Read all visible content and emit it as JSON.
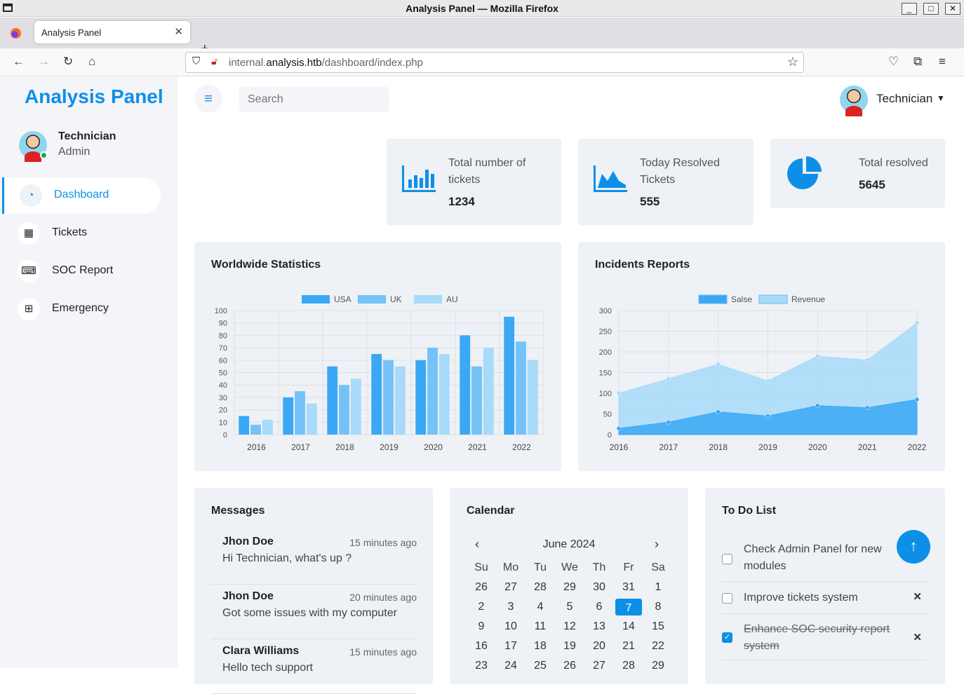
{
  "window": {
    "title": "Analysis Panel — Mozilla Firefox",
    "min": "_",
    "max": "□",
    "close": "✕"
  },
  "browser": {
    "tab_title": "Analysis Panel",
    "tab_close": "✕",
    "newtab": "+",
    "url_host": "internal.",
    "url_domain": "analysis.htb",
    "url_path": "/dashboard/index.php"
  },
  "sidebar": {
    "brand": "Analysis Panel",
    "user": {
      "name": "Technician",
      "role": "Admin"
    },
    "items": [
      {
        "label": "Dashboard",
        "icon": "speedometer-icon",
        "glyph": "◔"
      },
      {
        "label": "Tickets",
        "icon": "grid-icon",
        "glyph": "▦"
      },
      {
        "label": "SOC Report",
        "icon": "keyboard-icon",
        "glyph": "⌨"
      },
      {
        "label": "Emergency",
        "icon": "table-icon",
        "glyph": "⊞"
      }
    ]
  },
  "topbar": {
    "menu_glyph": "≡",
    "search_placeholder": "Search",
    "user": "Technician",
    "caret": "⌄"
  },
  "stats": [
    {
      "label": "Total number of tickets",
      "value": "1234",
      "icon": "bar-chart-icon"
    },
    {
      "label": "Today Resolved Tickets",
      "value": "555",
      "icon": "area-chart-icon"
    },
    {
      "label": "Total resolved",
      "value": "5645",
      "icon": "pie-chart-icon"
    }
  ],
  "worldwide": {
    "title": "Worldwide Statistics"
  },
  "incidents": {
    "title": "Incidents Reports"
  },
  "chart_data": [
    {
      "type": "bar",
      "title": "Worldwide Statistics",
      "categories": [
        "2016",
        "2017",
        "2018",
        "2019",
        "2020",
        "2021",
        "2022"
      ],
      "ylim": [
        0,
        100
      ],
      "yticks": [
        0,
        10,
        20,
        30,
        40,
        50,
        60,
        70,
        80,
        90,
        100
      ],
      "legend": "top",
      "series": [
        {
          "name": "USA",
          "color": "#3aa8f5",
          "values": [
            15,
            30,
            55,
            65,
            60,
            80,
            95
          ]
        },
        {
          "name": "UK",
          "color": "#74c2f8",
          "values": [
            8,
            35,
            40,
            60,
            70,
            55,
            75
          ]
        },
        {
          "name": "AU",
          "color": "#a8daf9",
          "values": [
            12,
            25,
            45,
            55,
            65,
            70,
            60
          ]
        }
      ]
    },
    {
      "type": "area",
      "title": "Incidents Reports",
      "x": [
        "2016",
        "2017",
        "2018",
        "2019",
        "2020",
        "2021",
        "2022"
      ],
      "ylim": [
        0,
        300
      ],
      "yticks": [
        0,
        50,
        100,
        150,
        200,
        250,
        300
      ],
      "legend": "top",
      "series": [
        {
          "name": "Salse",
          "color": "#3aa8f5",
          "values": [
            15,
            30,
            55,
            45,
            70,
            65,
            85
          ]
        },
        {
          "name": "Revenue",
          "color": "#a8daf9",
          "values": [
            100,
            135,
            170,
            130,
            190,
            180,
            270
          ]
        }
      ]
    }
  ],
  "messages": {
    "title": "Messages",
    "items": [
      {
        "name": "Jhon Doe",
        "time": "15 minutes ago",
        "text": "Hi Technician, what's up ?"
      },
      {
        "name": "Jhon Doe",
        "time": "20 minutes ago",
        "text": "Got some issues with my computer"
      },
      {
        "name": "Clara Williams",
        "time": "15 minutes ago",
        "text": "Hello tech support"
      }
    ]
  },
  "calendar": {
    "title": "Calendar",
    "month": "June 2024",
    "prev": "‹",
    "next": "›",
    "days": [
      "Su",
      "Mo",
      "Tu",
      "We",
      "Th",
      "Fr",
      "Sa"
    ],
    "dates": [
      "26",
      "27",
      "28",
      "29",
      "30",
      "31",
      "1",
      "2",
      "3",
      "4",
      "5",
      "6",
      "7",
      "8",
      "9",
      "10",
      "11",
      "12",
      "13",
      "14",
      "15",
      "16",
      "17",
      "18",
      "19",
      "20",
      "21",
      "22",
      "23",
      "24",
      "25",
      "26",
      "27",
      "28",
      "29"
    ],
    "selected": "7"
  },
  "todo": {
    "title": "To Do List",
    "items": [
      {
        "text": "Check Admin Panel for new modules",
        "done": false
      },
      {
        "text": "Improve tickets system",
        "done": false
      },
      {
        "text": "Enhance SOC security report system",
        "done": true
      }
    ],
    "remove": "✕"
  },
  "fab": "↑"
}
